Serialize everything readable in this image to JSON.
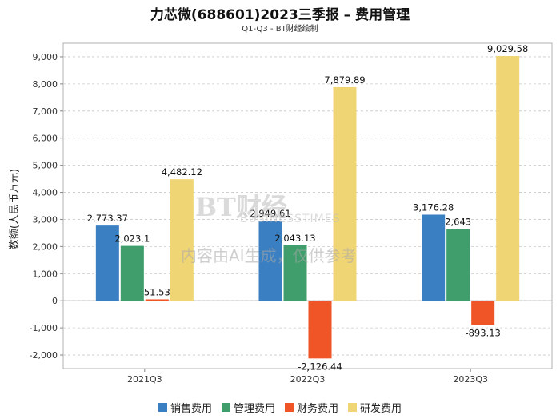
{
  "chart_data": {
    "type": "bar",
    "title": "力芯微(688601)2023三季报 – 费用管理",
    "subtitle": "Q1-Q3 - BT财经绘制",
    "ylabel": "数额(人民币万元)",
    "xlabel": "",
    "ylim": [
      -2500,
      9500
    ],
    "yticks": [
      -2000,
      -1000,
      0,
      1000,
      2000,
      3000,
      4000,
      5000,
      6000,
      7000,
      8000,
      9000
    ],
    "ytick_labels": [
      "-2,000",
      "-1,000",
      "0",
      "1,000",
      "2,000",
      "3,000",
      "4,000",
      "5,000",
      "6,000",
      "7,000",
      "8,000",
      "9,000"
    ],
    "categories": [
      "2021Q3",
      "2022Q3",
      "2023Q3"
    ],
    "grid": true,
    "legend_position": "bottom",
    "series": [
      {
        "name": "销售费用",
        "color": "#3a7fc1",
        "values": [
          2773.37,
          2949.61,
          3176.28
        ],
        "labels": [
          "2,773.37",
          "2,949.61",
          "3,176.28"
        ]
      },
      {
        "name": "管理费用",
        "color": "#3f9e6b",
        "values": [
          2023.1,
          2043.13,
          2643
        ],
        "labels": [
          "2,023.1",
          "2,043.13",
          "2,643"
        ]
      },
      {
        "name": "财务费用",
        "color": "#ef5526",
        "values": [
          51.53,
          -2126.44,
          -893.13
        ],
        "labels": [
          "51.53",
          "-2,126.44",
          "-893.13"
        ]
      },
      {
        "name": "研发费用",
        "color": "#f0d574",
        "values": [
          4482.12,
          7879.89,
          9029.58
        ],
        "labels": [
          "4,482.12",
          "7,879.89",
          "9,029.58"
        ]
      }
    ]
  },
  "watermark": {
    "logo_text": "BT财经",
    "logo_sub": "BUSINESSTIMES",
    "notice": "内容由AI生成，仅供参考"
  }
}
